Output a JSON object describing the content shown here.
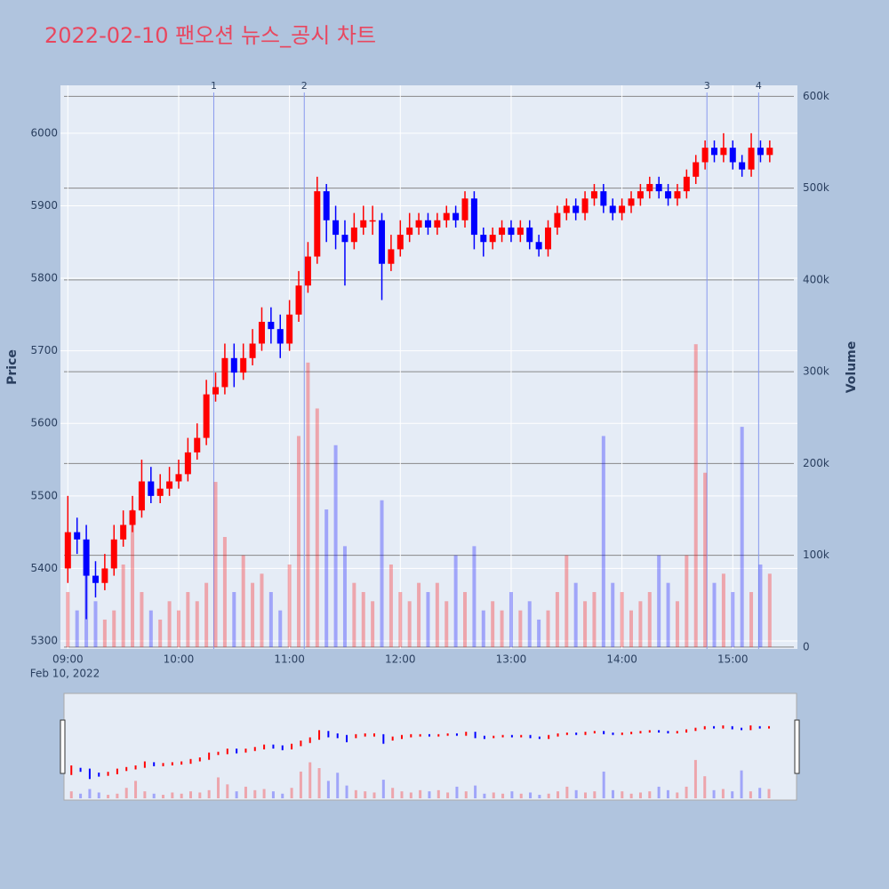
{
  "chart_data": {
    "type": "candlestick",
    "title": "2022-02-10 팬오션 뉴스_공시 차트",
    "x_date_label": "Feb 10, 2022",
    "y_label": "Price",
    "y2_label": "Volume",
    "x": [
      "09:00",
      "09:05",
      "09:10",
      "09:15",
      "09:20",
      "09:25",
      "09:30",
      "09:35",
      "09:40",
      "09:45",
      "09:50",
      "09:55",
      "10:00",
      "10:05",
      "10:10",
      "10:15",
      "10:20",
      "10:25",
      "10:30",
      "10:35",
      "10:40",
      "10:45",
      "10:50",
      "10:55",
      "11:00",
      "11:05",
      "11:10",
      "11:15",
      "11:20",
      "11:25",
      "11:30",
      "11:35",
      "11:40",
      "11:45",
      "11:50",
      "11:55",
      "12:00",
      "12:05",
      "12:10",
      "12:15",
      "12:20",
      "12:25",
      "12:30",
      "12:35",
      "12:40",
      "12:45",
      "12:50",
      "12:55",
      "13:00",
      "13:05",
      "13:10",
      "13:15",
      "13:20",
      "13:25",
      "13:30",
      "13:35",
      "13:40",
      "13:45",
      "13:50",
      "13:55",
      "14:00",
      "14:05",
      "14:10",
      "14:15",
      "14:20",
      "14:25",
      "14:30",
      "14:35",
      "14:40",
      "14:45",
      "14:50",
      "14:55",
      "15:00",
      "15:05",
      "15:10",
      "15:15",
      "15:20"
    ],
    "open": [
      5400,
      5450,
      5440,
      5390,
      5380,
      5400,
      5440,
      5460,
      5480,
      5520,
      5500,
      5510,
      5520,
      5530,
      5560,
      5580,
      5640,
      5650,
      5690,
      5670,
      5690,
      5710,
      5740,
      5730,
      5710,
      5750,
      5790,
      5830,
      5920,
      5880,
      5860,
      5850,
      5870,
      5880,
      5880,
      5820,
      5840,
      5860,
      5870,
      5880,
      5870,
      5880,
      5890,
      5880,
      5910,
      5860,
      5850,
      5860,
      5870,
      5860,
      5870,
      5850,
      5840,
      5870,
      5890,
      5900,
      5890,
      5910,
      5920,
      5900,
      5890,
      5900,
      5910,
      5920,
      5930,
      5920,
      5910,
      5920,
      5940,
      5960,
      5980,
      5970,
      5980,
      5960,
      5950,
      5980,
      5970
    ],
    "high": [
      5500,
      5470,
      5460,
      5410,
      5420,
      5460,
      5480,
      5500,
      5550,
      5540,
      5530,
      5540,
      5550,
      5580,
      5600,
      5660,
      5670,
      5710,
      5710,
      5710,
      5730,
      5760,
      5760,
      5750,
      5770,
      5810,
      5850,
      5940,
      5930,
      5900,
      5880,
      5890,
      5900,
      5900,
      5890,
      5860,
      5880,
      5890,
      5890,
      5890,
      5890,
      5900,
      5900,
      5920,
      5920,
      5870,
      5870,
      5880,
      5880,
      5880,
      5880,
      5860,
      5880,
      5900,
      5910,
      5910,
      5920,
      5930,
      5930,
      5910,
      5910,
      5920,
      5930,
      5940,
      5940,
      5930,
      5930,
      5950,
      5970,
      5990,
      5990,
      6000,
      5990,
      5970,
      6000,
      5990,
      5990
    ],
    "low": [
      5380,
      5420,
      5330,
      5360,
      5370,
      5390,
      5430,
      5450,
      5470,
      5490,
      5490,
      5500,
      5510,
      5520,
      5550,
      5570,
      5630,
      5640,
      5650,
      5660,
      5680,
      5700,
      5710,
      5690,
      5700,
      5740,
      5780,
      5820,
      5850,
      5840,
      5790,
      5840,
      5860,
      5860,
      5770,
      5810,
      5830,
      5850,
      5860,
      5860,
      5860,
      5870,
      5870,
      5870,
      5840,
      5830,
      5840,
      5850,
      5850,
      5850,
      5840,
      5830,
      5830,
      5860,
      5880,
      5880,
      5880,
      5900,
      5890,
      5880,
      5880,
      5890,
      5900,
      5910,
      5910,
      5900,
      5900,
      5910,
      5930,
      5950,
      5960,
      5960,
      5950,
      5940,
      5940,
      5960,
      5960
    ],
    "close": [
      5450,
      5440,
      5390,
      5380,
      5400,
      5440,
      5460,
      5480,
      5520,
      5500,
      5510,
      5520,
      5530,
      5560,
      5580,
      5640,
      5650,
      5690,
      5670,
      5690,
      5710,
      5740,
      5730,
      5710,
      5750,
      5790,
      5830,
      5920,
      5880,
      5860,
      5850,
      5870,
      5880,
      5880,
      5820,
      5840,
      5860,
      5870,
      5880,
      5870,
      5880,
      5890,
      5880,
      5910,
      5860,
      5850,
      5860,
      5870,
      5860,
      5870,
      5850,
      5840,
      5870,
      5890,
      5900,
      5890,
      5910,
      5920,
      5900,
      5890,
      5900,
      5910,
      5920,
      5930,
      5920,
      5910,
      5920,
      5940,
      5960,
      5980,
      5970,
      5980,
      5960,
      5950,
      5980,
      5970,
      5980
    ],
    "volume": [
      60000,
      40000,
      80000,
      50000,
      30000,
      40000,
      90000,
      150000,
      60000,
      40000,
      30000,
      50000,
      40000,
      60000,
      50000,
      70000,
      180000,
      120000,
      60000,
      100000,
      70000,
      80000,
      60000,
      40000,
      90000,
      230000,
      310000,
      260000,
      150000,
      220000,
      110000,
      70000,
      60000,
      50000,
      160000,
      90000,
      60000,
      50000,
      70000,
      60000,
      70000,
      50000,
      100000,
      60000,
      110000,
      40000,
      50000,
      40000,
      60000,
      40000,
      50000,
      30000,
      40000,
      60000,
      100000,
      70000,
      50000,
      60000,
      230000,
      70000,
      60000,
      40000,
      50000,
      60000,
      100000,
      70000,
      50000,
      100000,
      330000,
      190000,
      70000,
      80000,
      60000,
      240000,
      60000,
      90000,
      80000
    ],
    "increasing_color": "#ff0000",
    "decreasing_color": "#0000ff",
    "xlim": [
      "08:56",
      "15:35"
    ],
    "xticks": [
      "09:00",
      "10:00",
      "11:00",
      "12:00",
      "13:00",
      "14:00",
      "15:00"
    ],
    "ylim": [
      5289,
      6066
    ],
    "yticks": [
      5300,
      5400,
      5500,
      5600,
      5700,
      5800,
      5900,
      6000
    ],
    "y2lim": [
      -2000,
      612000
    ],
    "y2ticks": [
      0,
      {
        "value": 100000,
        "label": "100k"
      },
      {
        "value": 200000,
        "label": "200k"
      },
      {
        "value": 300000,
        "label": "300k"
      },
      {
        "value": 400000,
        "label": "400k"
      },
      {
        "value": 500000,
        "label": "500k"
      },
      {
        "value": 600000,
        "label": "600k"
      }
    ],
    "news": [
      {
        "x": "10:19",
        "label": "1"
      },
      {
        "x": "11:08",
        "label": "2"
      },
      {
        "x": "14:46",
        "label": "3"
      },
      {
        "x": "15:14",
        "label": "4"
      }
    ],
    "grid": true,
    "range_slider": true
  }
}
